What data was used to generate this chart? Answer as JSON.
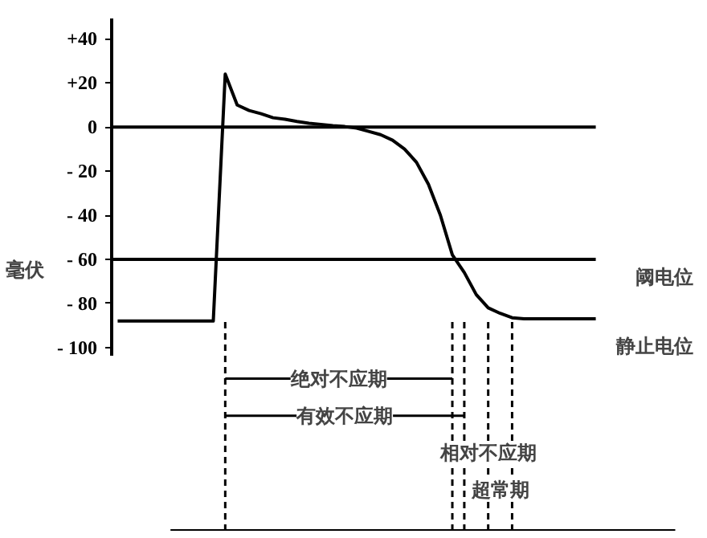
{
  "chart_data": {
    "type": "line",
    "ylabel": "毫伏",
    "ylim": [
      -104,
      49
    ],
    "yticks": [
      {
        "value": 40,
        "label": "+40"
      },
      {
        "value": 20,
        "label": "+20"
      },
      0,
      {
        "value": -20,
        "label": "- 20"
      },
      {
        "value": -40,
        "label": "- 40"
      },
      {
        "value": -60,
        "label": "- 60"
      },
      {
        "value": -80,
        "label": "- 80"
      },
      {
        "value": -100,
        "label": "- 100"
      }
    ],
    "tick_labels": "y",
    "grid": false,
    "categories": [
      null,
      null,
      null,
      null,
      null,
      null,
      null,
      null,
      null,
      null,
      null,
      null,
      null,
      null,
      null,
      null,
      null,
      null,
      null,
      null,
      null,
      null,
      null,
      null,
      null,
      null,
      null,
      null,
      null,
      null,
      null,
      null,
      null,
      null,
      null,
      null,
      null,
      null,
      null,
      null,
      null
    ],
    "series": [
      {
        "color": "#000000",
        "values": [
          -88,
          -88,
          -88,
          -88,
          -88,
          -88,
          -88,
          -88,
          -88,
          24,
          10,
          7.5,
          6,
          4.2,
          3.5,
          2.5,
          1.7,
          1.2,
          0.6,
          0.2,
          -0.5,
          -2,
          -3.5,
          -6,
          -10,
          -16,
          -26,
          -40,
          -58,
          -66,
          -76,
          -82,
          -84.5,
          -86.5,
          -87,
          -87,
          -87,
          -87,
          -87,
          -87,
          -87
        ]
      }
    ],
    "ref_lines": [
      {
        "axis": "y",
        "value": 0
      },
      {
        "axis": "y",
        "value": -60,
        "label": "阈电位"
      }
    ],
    "annotations": [
      "绝对不应期",
      "有效不应期",
      "相对不应期",
      "超常期",
      "静止电位"
    ]
  }
}
